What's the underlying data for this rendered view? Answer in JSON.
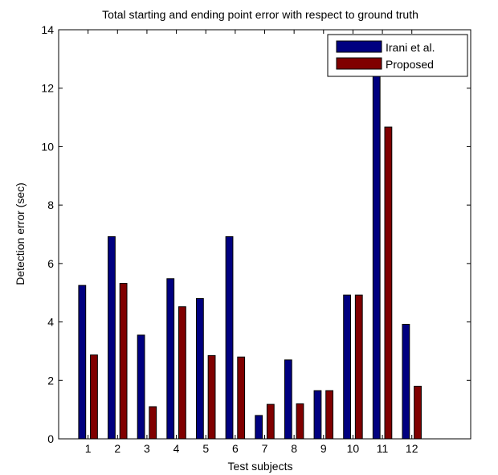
{
  "chart_data": {
    "type": "bar",
    "title": "Total starting and ending point error with respect to ground truth",
    "xlabel": "Test subjects",
    "ylabel": "Detection error (sec)",
    "categories": [
      "1",
      "2",
      "3",
      "4",
      "5",
      "6",
      "7",
      "8",
      "9",
      "10",
      "11",
      "12"
    ],
    "xlim": [
      0,
      14
    ],
    "ylim": [
      0,
      14
    ],
    "yticks": [
      0,
      2,
      4,
      6,
      8,
      10,
      12,
      14
    ],
    "grid": false,
    "legend_position": "top-right",
    "series": [
      {
        "name": "Irani et al.",
        "color": "#000080",
        "values": [
          5.25,
          6.92,
          3.55,
          5.48,
          4.8,
          6.92,
          0.8,
          2.7,
          1.65,
          4.92,
          12.6,
          3.92
        ]
      },
      {
        "name": "Proposed",
        "color": "#800000",
        "values": [
          2.87,
          5.32,
          1.1,
          4.52,
          2.85,
          2.8,
          1.18,
          1.2,
          1.65,
          4.92,
          10.67,
          1.8
        ]
      }
    ]
  }
}
